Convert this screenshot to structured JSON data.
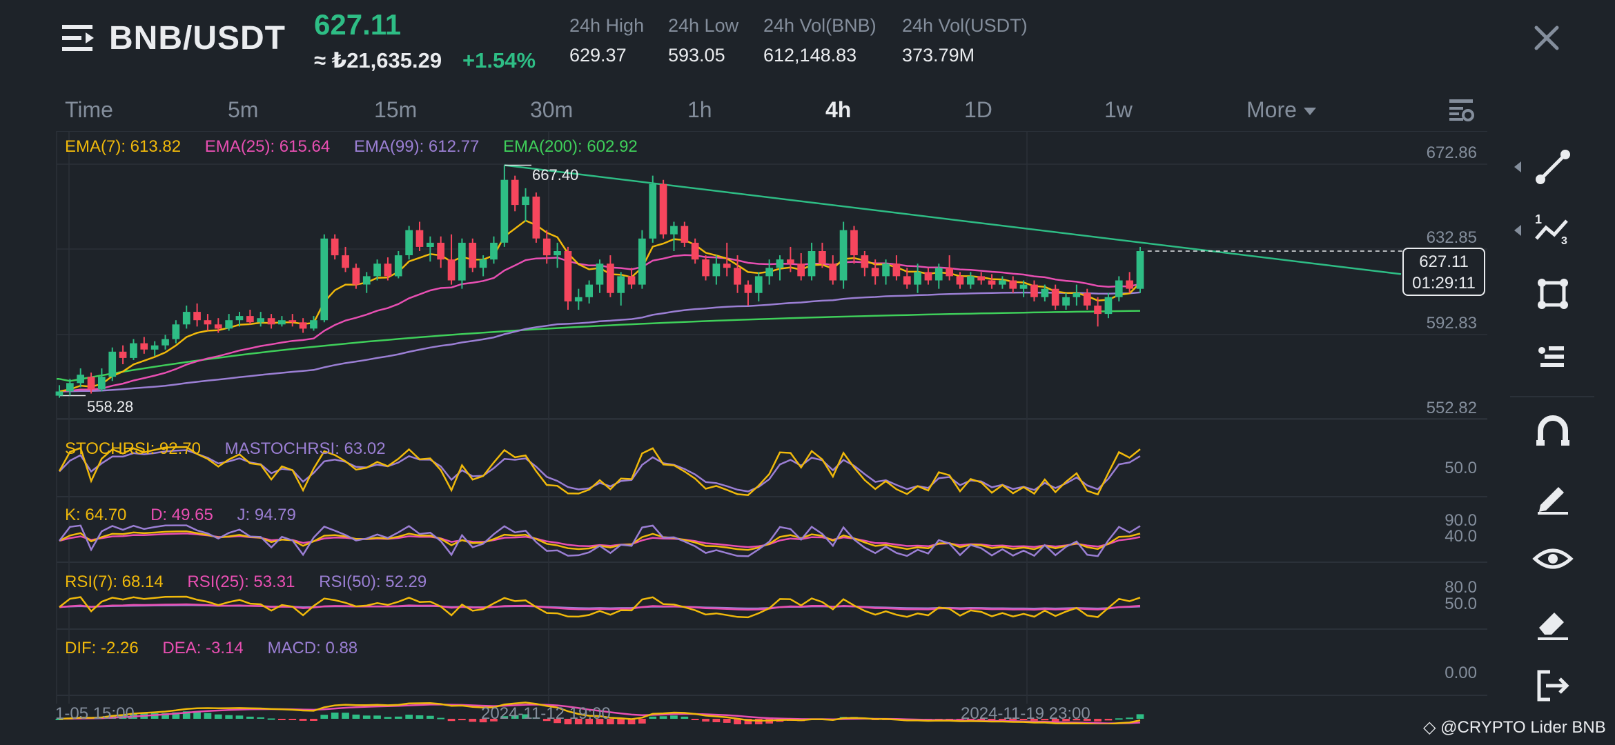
{
  "header": {
    "pair": "BNB/USDT",
    "price": "627.11",
    "price_try": "≈ ₺21,635.29",
    "change": "+1.54%",
    "stats": [
      {
        "label": "24h High",
        "value": "629.37"
      },
      {
        "label": "24h Low",
        "value": "593.05"
      },
      {
        "label": "24h Vol(BNB)",
        "value": "612,148.83"
      },
      {
        "label": "24h Vol(USDT)",
        "value": "373.79M"
      }
    ]
  },
  "tabs": [
    "Time",
    "5m",
    "15m",
    "30m",
    "1h",
    "4h",
    "1D",
    "1w",
    "More"
  ],
  "active_tab": "4h",
  "colors": {
    "up": "#2ebd85",
    "down": "#f6465d",
    "ema7": "#f0b90b",
    "ema25": "#e84fb2",
    "ema99": "#9b7fd4",
    "ema200": "#3fcf5a",
    "trend": "#2ebd85"
  },
  "chart_data": {
    "type": "candlestick",
    "price_axis": [
      "672.86",
      "632.85",
      "592.83",
      "552.82"
    ],
    "price_range": [
      545.0,
      680.0
    ],
    "current_price": "627.11",
    "countdown": "01:29:11",
    "annotations": {
      "high": "667.40",
      "low": "558.28"
    },
    "x_labels": [
      "1-05 15:00",
      "2024-11-12 19:00",
      "2024-11-19 23:00"
    ],
    "candles": [
      [
        557,
        562,
        556,
        559
      ],
      [
        559,
        565,
        557,
        563
      ],
      [
        563,
        570,
        561,
        567
      ],
      [
        566,
        568,
        558,
        560
      ],
      [
        560,
        570,
        559,
        566
      ],
      [
        566,
        580,
        564,
        578
      ],
      [
        578,
        581,
        572,
        575
      ],
      [
        575,
        584,
        574,
        582
      ],
      [
        582,
        585,
        577,
        579
      ],
      [
        579,
        583,
        576,
        581
      ],
      [
        581,
        586,
        579,
        584
      ],
      [
        584,
        593,
        582,
        591
      ],
      [
        591,
        600,
        589,
        597
      ],
      [
        597,
        601,
        590,
        593
      ],
      [
        593,
        596,
        588,
        591
      ],
      [
        591,
        594,
        587,
        589
      ],
      [
        589,
        596,
        588,
        593
      ],
      [
        593,
        597,
        590,
        595
      ],
      [
        595,
        598,
        591,
        592
      ],
      [
        592,
        597,
        590,
        594
      ],
      [
        594,
        596,
        589,
        591
      ],
      [
        591,
        595,
        590,
        593
      ],
      [
        593,
        596,
        590,
        592
      ],
      [
        592,
        594,
        587,
        589
      ],
      [
        589,
        595,
        588,
        593
      ],
      [
        593,
        634,
        592,
        632
      ],
      [
        632,
        634,
        622,
        624
      ],
      [
        624,
        628,
        616,
        618
      ],
      [
        618,
        620,
        608,
        610
      ],
      [
        610,
        616,
        606,
        614
      ],
      [
        614,
        622,
        612,
        620
      ],
      [
        620,
        623,
        612,
        614
      ],
      [
        614,
        626,
        613,
        624
      ],
      [
        624,
        638,
        622,
        636
      ],
      [
        636,
        640,
        626,
        628
      ],
      [
        628,
        633,
        621,
        630
      ],
      [
        630,
        633,
        618,
        622
      ],
      [
        622,
        634,
        610,
        612
      ],
      [
        612,
        632,
        608,
        630
      ],
      [
        630,
        632,
        616,
        618
      ],
      [
        618,
        624,
        614,
        622
      ],
      [
        622,
        633,
        620,
        630
      ],
      [
        630,
        667,
        628,
        660
      ],
      [
        660,
        662,
        645,
        648
      ],
      [
        648,
        656,
        640,
        652
      ],
      [
        652,
        654,
        630,
        632
      ],
      [
        632,
        636,
        620,
        624
      ],
      [
        624,
        630,
        618,
        626
      ],
      [
        626,
        628,
        598,
        602
      ],
      [
        602,
        608,
        598,
        604
      ],
      [
        604,
        612,
        601,
        610
      ],
      [
        610,
        622,
        606,
        620
      ],
      [
        620,
        624,
        604,
        606
      ],
      [
        606,
        616,
        600,
        614
      ],
      [
        614,
        618,
        608,
        610
      ],
      [
        610,
        636,
        608,
        632
      ],
      [
        632,
        662,
        630,
        658
      ],
      [
        658,
        660,
        632,
        634
      ],
      [
        634,
        640,
        626,
        638
      ],
      [
        638,
        640,
        628,
        630
      ],
      [
        630,
        632,
        620,
        622
      ],
      [
        622,
        624,
        612,
        614
      ],
      [
        614,
        624,
        610,
        620
      ],
      [
        620,
        630,
        614,
        618
      ],
      [
        618,
        624,
        606,
        610
      ],
      [
        610,
        612,
        600,
        606
      ],
      [
        606,
        616,
        602,
        614
      ],
      [
        614,
        622,
        610,
        618
      ],
      [
        618,
        624,
        612,
        622
      ],
      [
        622,
        628,
        616,
        620
      ],
      [
        620,
        625,
        612,
        614
      ],
      [
        614,
        630,
        612,
        626
      ],
      [
        626,
        630,
        618,
        620
      ],
      [
        620,
        624,
        610,
        612
      ],
      [
        612,
        640,
        608,
        636
      ],
      [
        636,
        638,
        620,
        624
      ],
      [
        624,
        626,
        614,
        618
      ],
      [
        618,
        622,
        610,
        614
      ],
      [
        614,
        622,
        610,
        620
      ],
      [
        620,
        624,
        612,
        614
      ],
      [
        614,
        618,
        608,
        610
      ],
      [
        610,
        620,
        606,
        616
      ],
      [
        616,
        618,
        610,
        612
      ],
      [
        612,
        620,
        608,
        618
      ],
      [
        618,
        624,
        612,
        614
      ],
      [
        614,
        616,
        608,
        610
      ],
      [
        610,
        616,
        608,
        614
      ],
      [
        614,
        616,
        610,
        612
      ],
      [
        612,
        615,
        608,
        610
      ],
      [
        610,
        614,
        608,
        612
      ],
      [
        612,
        614,
        606,
        608
      ],
      [
        608,
        612,
        604,
        610
      ],
      [
        610,
        612,
        602,
        604
      ],
      [
        604,
        610,
        602,
        608
      ],
      [
        608,
        610,
        598,
        600
      ],
      [
        600,
        606,
        598,
        604
      ],
      [
        604,
        610,
        600,
        606
      ],
      [
        606,
        608,
        598,
        600
      ],
      [
        600,
        604,
        590,
        596
      ],
      [
        596,
        606,
        594,
        604
      ],
      [
        604,
        614,
        602,
        612
      ],
      [
        612,
        616,
        606,
        608
      ],
      [
        608,
        628,
        606,
        626
      ]
    ],
    "ema7_label": "EMA(7): 613.82",
    "ema25_label": "EMA(25): 615.64",
    "ema99_label": "EMA(99): 612.77",
    "ema200_label": "EMA(200): 602.92",
    "stochrsi": {
      "label": "STOCHRSI: 92.70",
      "ma_label": "MASTOCHRSI: 63.02",
      "axis": [
        "50.0"
      ]
    },
    "kdj": {
      "k_label": "K: 64.70",
      "d_label": "D: 49.65",
      "j_label": "J: 94.79",
      "axis": [
        "90.0",
        "40.0"
      ]
    },
    "rsi": {
      "rsi7_label": "RSI(7): 68.14",
      "rsi25_label": "RSI(25): 53.31",
      "rsi50_label": "RSI(50): 52.29",
      "axis": [
        "80.0",
        "50.0"
      ]
    },
    "macd": {
      "dif_label": "DIF: -2.26",
      "dea_label": "DEA: -3.14",
      "macd_label": "MACD: 0.88",
      "axis": [
        "0.00"
      ]
    }
  },
  "toolbar": [
    "trend-line-icon",
    "fib-icon",
    "rectangle-icon",
    "indicator-icon",
    "magnet-icon",
    "draw-icon",
    "eye-icon",
    "eraser-icon",
    "exit-icon"
  ],
  "watermark": "@CRYPTO Lider BNB"
}
